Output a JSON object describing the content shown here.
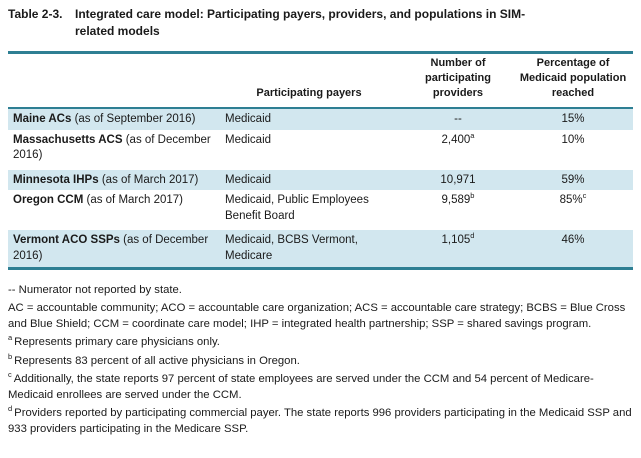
{
  "colors": {
    "accent_teal": "#2e7f93",
    "row_highlight_blue": "#d2e7ef",
    "text": "#1a1a1a",
    "background": "#ffffff"
  },
  "title": {
    "label": "Table 2-3.",
    "lines": [
      "Integrated care model: Participating payers, providers, and populations in SIM-",
      "related models"
    ]
  },
  "table": {
    "headers": [
      "",
      "Participating payers",
      "Number of participating providers",
      "Percentage of Medicaid population reached"
    ],
    "rows": [
      {
        "state": "Maine ACs",
        "date": "(as of September 2016)",
        "payers": "Medicaid",
        "providers": "--",
        "providers_sup": "",
        "percent": "15%",
        "percent_sup": ""
      },
      {
        "state": "Massachusetts ACS",
        "date": "(as of December 2016)",
        "payers": "Medicaid",
        "providers": "2,400",
        "providers_sup": "a",
        "percent": "10%",
        "percent_sup": ""
      },
      {
        "state": "Minnesota IHPs",
        "date": "(as of March 2017)",
        "payers": "Medicaid",
        "providers": "10,971",
        "providers_sup": "",
        "percent": "59%",
        "percent_sup": ""
      },
      {
        "state": "Oregon CCM",
        "date": "(as of March 2017)",
        "payers": "Medicaid, Public Employees Benefit Board",
        "providers": "9,589",
        "providers_sup": "b",
        "percent": "85%",
        "percent_sup": "c"
      },
      {
        "state": "Vermont ACO SSPs",
        "date": "(as of December 2016)",
        "payers": "Medicaid, BCBS Vermont, Medicare",
        "providers": "1,105",
        "providers_sup": "d",
        "percent": "46%",
        "percent_sup": ""
      }
    ]
  },
  "footnotes": [
    {
      "marker": "",
      "text": "-- Numerator not reported by state."
    },
    {
      "marker": "",
      "text": "AC = accountable community; ACO = accountable care organization; ACS = accountable care strategy; BCBS = Blue Cross and Blue Shield; CCM = coordinate care model; IHP = integrated health partnership; SSP = shared savings program."
    },
    {
      "marker": "a",
      "text": "Represents primary care physicians only."
    },
    {
      "marker": "b",
      "text": "Represents 83 percent of all active physicians in Oregon."
    },
    {
      "marker": "c",
      "text": "Additionally, the state reports 97 percent of state employees are served under the CCM and 54 percent of Medicare-Medicaid enrollees are served under the CCM."
    },
    {
      "marker": "d",
      "text": "Providers reported by participating commercial payer. The state reports 996 providers participating in the Medicaid SSP and 933 providers participating in the Medicare SSP."
    }
  ]
}
